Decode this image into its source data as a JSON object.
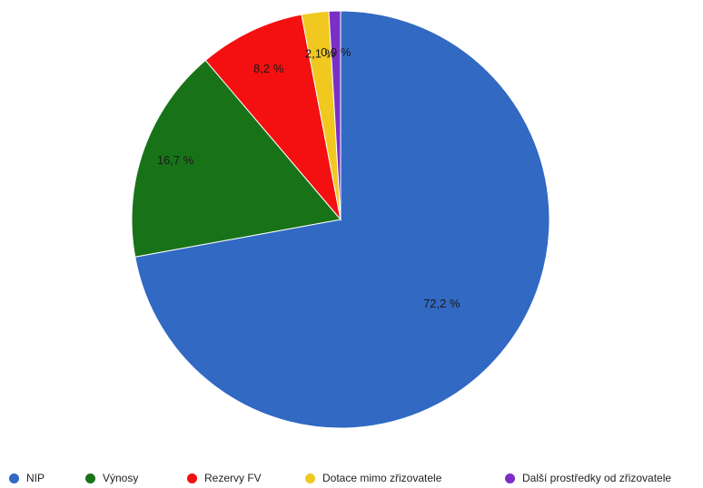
{
  "chart_data": {
    "type": "pie",
    "title": "",
    "categories": [
      "NIP",
      "Výnosy",
      "Rezervy FV",
      "Dotace mimo zřizovatele",
      "Další prostředky od zřizovatele"
    ],
    "values": [
      72.2,
      16.7,
      8.2,
      2.1,
      0.9
    ],
    "data_labels": [
      "72,2 %",
      "16,7 %",
      "8,2 %",
      "2,1 %",
      "0,9 %"
    ],
    "colors": [
      "#3169c3",
      "#187318",
      "#f41010",
      "#f0c820",
      "#7b2fc6"
    ],
    "legend_position": "bottom",
    "start": "12 o'clock",
    "direction": "clockwise"
  }
}
